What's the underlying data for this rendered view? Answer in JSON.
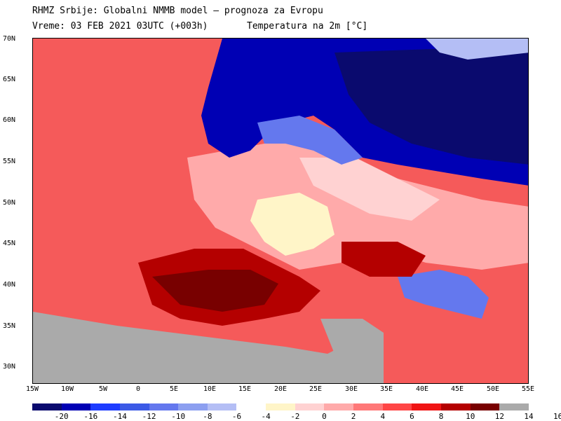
{
  "header": {
    "line1": "RHMZ Srbije: Globalni NMMB model — prognoza za Evropu",
    "line2": "Vreme: 03 FEB 2021 03UTC (+003h)",
    "line2b": "Temperatura na 2m [°C]"
  },
  "axes": {
    "lat_ticks": [
      "70N",
      "65N",
      "60N",
      "55N",
      "50N",
      "45N",
      "40N",
      "35N",
      "30N"
    ],
    "lon_ticks": [
      "15W",
      "10W",
      "5W",
      "0",
      "5E",
      "10E",
      "15E",
      "20E",
      "25E",
      "30E",
      "35E",
      "40E",
      "45E",
      "50E",
      "55E"
    ]
  },
  "legend": {
    "colors": [
      "#0a0a6e",
      "#0000b4",
      "#1e3cff",
      "#3c5ae6",
      "#6478ee",
      "#8c9ff0",
      "#b4bef5",
      "#ffffff",
      "#fff5c8",
      "#ffd2d2",
      "#ffaaaa",
      "#ff7878",
      "#ff4646",
      "#f01414",
      "#b40000",
      "#780000",
      "#aaaaaa"
    ],
    "labels": [
      "-20",
      "-16",
      "-14",
      "-12",
      "-10",
      "-8",
      "-6",
      "-4",
      "-2",
      "0",
      "2",
      "4",
      "6",
      "8",
      "10",
      "12",
      "14",
      "16"
    ]
  },
  "map_colors": {
    "warm_sea": "#f55a5a",
    "warm": "#ff7878",
    "hot": "#b40000",
    "very_hot": "#780000",
    "mild": "#ffaaaa",
    "pale": "#ffd2d2",
    "cream": "#fff5c8",
    "cold": "#0000b4",
    "very_cold": "#0a0a6e",
    "cool": "#6478ee",
    "coolest_light": "#b4bef5",
    "masked": "#aaaaaa"
  }
}
